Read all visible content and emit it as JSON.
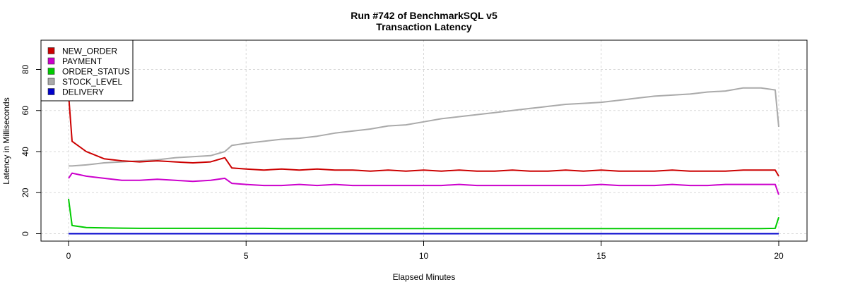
{
  "chart_data": {
    "type": "line",
    "title": "Run #742 of BenchmarkSQL v5",
    "subtitle": "Transaction Latency",
    "xlabel": "Elapsed Minutes",
    "ylabel": "Latency in Milliseconds",
    "xlim": [
      -1.5,
      20.8
    ],
    "ylim": [
      -3.8,
      94
    ],
    "xticks": [
      0,
      5,
      10,
      15,
      20
    ],
    "yticks": [
      0,
      20,
      40,
      60,
      80
    ],
    "grid": true,
    "legend_position": "top-left",
    "x": [
      0,
      0.1,
      0.5,
      1,
      1.5,
      2,
      2.5,
      3,
      3.5,
      4,
      4.4,
      4.6,
      5,
      5.5,
      6,
      6.5,
      7,
      7.5,
      8,
      8.5,
      9,
      9.5,
      10,
      10.5,
      11,
      11.5,
      12,
      12.5,
      13,
      13.5,
      14,
      14.5,
      15,
      15.5,
      16,
      16.5,
      17,
      17.5,
      18,
      18.5,
      19,
      19.5,
      19.9,
      20
    ],
    "series": [
      {
        "name": "NEW_ORDER",
        "color": "#cc0000",
        "values": [
          68,
          45,
          40,
          36.5,
          35.5,
          35,
          35.5,
          35,
          34.5,
          35,
          37,
          32,
          31.5,
          31,
          31.5,
          31,
          31.5,
          31,
          31,
          30.5,
          31,
          30.5,
          31,
          30.5,
          31,
          30.5,
          30.5,
          31,
          30.5,
          30.5,
          31,
          30.5,
          31,
          30.5,
          30.5,
          30.5,
          31,
          30.5,
          30.5,
          30.5,
          31,
          31,
          31,
          28
        ]
      },
      {
        "name": "PAYMENT",
        "color": "#cc00cc",
        "values": [
          27,
          29.5,
          28,
          27,
          26,
          26,
          26.5,
          26,
          25.5,
          26,
          27,
          24.5,
          24,
          23.5,
          23.5,
          24,
          23.5,
          24,
          23.5,
          23.5,
          23.5,
          23.5,
          23.5,
          23.5,
          24,
          23.5,
          23.5,
          23.5,
          23.5,
          23.5,
          23.5,
          23.5,
          24,
          23.5,
          23.5,
          23.5,
          24,
          23.5,
          23.5,
          24,
          24,
          24,
          24,
          19
        ]
      },
      {
        "name": "ORDER_STATUS",
        "color": "#00cc00",
        "values": [
          17,
          4,
          3,
          2.8,
          2.7,
          2.6,
          2.6,
          2.6,
          2.6,
          2.6,
          2.6,
          2.6,
          2.6,
          2.6,
          2.5,
          2.5,
          2.5,
          2.5,
          2.5,
          2.5,
          2.5,
          2.5,
          2.5,
          2.5,
          2.5,
          2.5,
          2.5,
          2.5,
          2.5,
          2.5,
          2.5,
          2.5,
          2.5,
          2.5,
          2.5,
          2.5,
          2.5,
          2.5,
          2.5,
          2.5,
          2.5,
          2.5,
          2.6,
          8
        ]
      },
      {
        "name": "STOCK_LEVEL",
        "color": "#aaaaaa",
        "values": [
          33,
          33,
          33.5,
          34.5,
          35,
          35.5,
          36,
          37,
          37.5,
          38,
          40,
          43,
          44,
          45,
          46,
          46.5,
          47.5,
          49,
          50,
          51,
          52.5,
          53,
          54.5,
          56,
          57,
          58,
          59,
          60,
          61,
          62,
          63,
          63.5,
          64,
          65,
          66,
          67,
          67.5,
          68,
          69,
          69.5,
          71,
          71,
          70,
          52
        ]
      },
      {
        "name": "DELIVERY",
        "color": "#0000cc",
        "values": [
          0,
          0,
          0,
          0,
          0,
          0,
          0,
          0,
          0,
          0,
          0,
          0,
          0,
          0,
          0,
          0,
          0,
          0,
          0,
          0,
          0,
          0,
          0,
          0,
          0,
          0,
          0,
          0,
          0,
          0,
          0,
          0,
          0,
          0,
          0,
          0,
          0,
          0,
          0,
          0,
          0,
          0,
          0,
          0
        ]
      }
    ]
  }
}
